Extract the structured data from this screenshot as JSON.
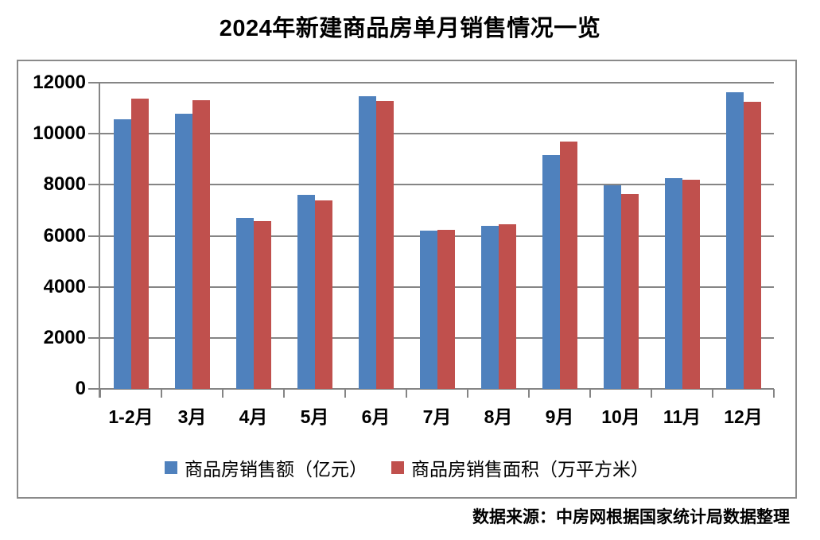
{
  "title": "2024年新建商品房单月销售情况一览",
  "footer": "数据来源：中房网根据国家统计局数据整理",
  "colors": {
    "series_amount": "#4F81BD",
    "series_area": "#C0504D",
    "gridline": "#858585",
    "frame_border": "#8A8A8A",
    "text": "#000000",
    "background": "#FFFFFF"
  },
  "chart_data": {
    "type": "bar",
    "title": "2024年新建商品房单月销售情况一览",
    "categories": [
      "1-2月",
      "3月",
      "4月",
      "5月",
      "6月",
      "7月",
      "8月",
      "9月",
      "10月",
      "11月",
      "12月"
    ],
    "series": [
      {
        "name": "商品房销售额（亿元）",
        "color": "#4F81BD",
        "values": [
          10566,
          10789,
          6712,
          7598,
          11468,
          6197,
          6393,
          9157,
          7975,
          8270,
          11625
        ]
      },
      {
        "name": "商品房销售面积（万平方米）",
        "color": "#C0504D",
        "values": [
          11369,
          11299,
          6584,
          7390,
          11274,
          6233,
          6453,
          9682,
          7646,
          8188,
          11267
        ]
      }
    ],
    "xlabel": "",
    "ylabel": "",
    "ylim": [
      0,
      12000
    ],
    "y_ticks": [
      0,
      2000,
      4000,
      6000,
      8000,
      10000,
      12000
    ],
    "grid": true,
    "legend_position": "bottom",
    "source_note": "数据来源：中房网根据国家统计局数据整理"
  }
}
